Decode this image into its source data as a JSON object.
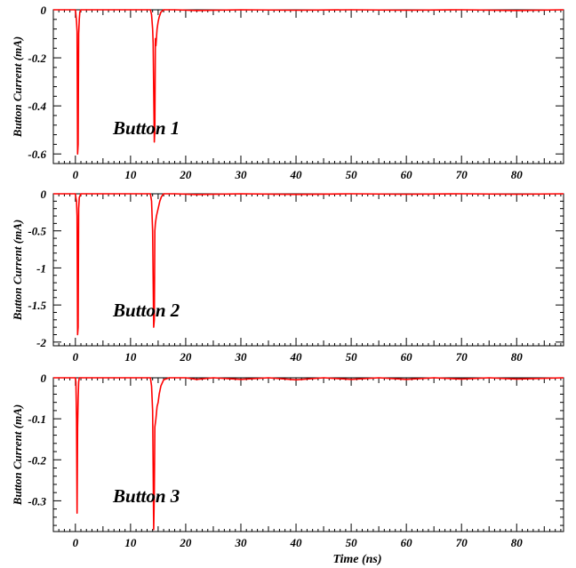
{
  "chart_data": [
    {
      "type": "line",
      "panel_label": "Button 1",
      "ylabel": "Button Current (mA)",
      "xlabel": "",
      "xlim": [
        -4,
        88.5
      ],
      "ylim": [
        -0.64,
        0
      ],
      "xticks": [
        0,
        10,
        20,
        30,
        40,
        50,
        60,
        70,
        80
      ],
      "yticks": [
        0,
        -0.2,
        -0.4,
        -0.6
      ],
      "ytick_labels": [
        "0",
        "-0.2",
        "-0.4",
        "-0.6"
      ],
      "color": "#ff0000",
      "series": [
        {
          "x": [
            -4,
            0.0,
            0.1,
            0.2,
            0.3,
            0.4,
            0.5,
            0.6,
            0.7,
            0.8,
            1.0,
            2,
            4,
            8,
            12,
            13.6,
            13.8,
            14.0,
            14.1,
            14.2,
            14.3,
            14.4,
            14.5,
            14.6,
            14.8,
            15.0,
            15.2,
            15.5,
            16,
            18,
            22,
            30,
            40,
            50,
            60,
            70,
            80,
            88.5
          ],
          "y": [
            0,
            0,
            -0.02,
            -0.05,
            -0.09,
            -0.6,
            -0.56,
            -0.1,
            -0.04,
            -0.01,
            0,
            0,
            0,
            0,
            0,
            0,
            -0.02,
            -0.08,
            -0.14,
            -0.33,
            -0.55,
            -0.5,
            -0.12,
            -0.15,
            -0.08,
            -0.05,
            -0.03,
            -0.01,
            0,
            0,
            -0.003,
            0,
            -0.002,
            0,
            -0.002,
            0,
            -0.003,
            0
          ]
        }
      ]
    },
    {
      "type": "line",
      "panel_label": "Button 2",
      "ylabel": "Button Current (mA)",
      "xlabel": "",
      "xlim": [
        -4,
        88.5
      ],
      "ylim": [
        -2.05,
        0
      ],
      "xticks": [
        0,
        10,
        20,
        30,
        40,
        50,
        60,
        70,
        80
      ],
      "yticks": [
        0,
        -0.5,
        -1,
        -1.5,
        -2
      ],
      "ytick_labels": [
        "0",
        "-0.5",
        "-1",
        "-1.5",
        "-2"
      ],
      "color": "#ff0000",
      "series": [
        {
          "x": [
            -4,
            0.0,
            0.1,
            0.2,
            0.3,
            0.4,
            0.5,
            0.6,
            0.7,
            1.0,
            2,
            6,
            10,
            13.6,
            13.8,
            14.0,
            14.1,
            14.2,
            14.3,
            14.4,
            14.5,
            14.7,
            15.0,
            15.3,
            15.6,
            16,
            18,
            22,
            30,
            40,
            50,
            60,
            70,
            80,
            88.5
          ],
          "y": [
            0,
            0,
            -0.05,
            -0.1,
            -0.3,
            -1.9,
            -1.8,
            -0.2,
            -0.05,
            0,
            0,
            0,
            0,
            0,
            -0.1,
            -0.5,
            -1.15,
            -1.8,
            -1.7,
            -0.5,
            -0.4,
            -0.3,
            -0.2,
            -0.1,
            -0.04,
            0,
            0,
            -0.01,
            0,
            -0.008,
            0,
            -0.006,
            0,
            -0.006,
            0
          ]
        }
      ]
    },
    {
      "type": "line",
      "panel_label": "Button 3",
      "ylabel": "Button Current (mA)",
      "xlabel": "Time (ns)",
      "xlim": [
        -4,
        88.5
      ],
      "ylim": [
        -0.375,
        0
      ],
      "xticks": [
        0,
        10,
        20,
        30,
        40,
        50,
        60,
        70,
        80
      ],
      "yticks": [
        0,
        -0.1,
        -0.2,
        -0.3
      ],
      "ytick_labels": [
        "0",
        "-0.1",
        "-0.2",
        "-0.3"
      ],
      "color": "#ff0000",
      "series": [
        {
          "x": [
            -4,
            0.0,
            0.1,
            0.2,
            0.3,
            0.4,
            0.5,
            0.6,
            0.7,
            1.0,
            2,
            6,
            10,
            13.6,
            13.8,
            14.0,
            14.1,
            14.2,
            14.3,
            14.4,
            14.6,
            14.8,
            15.0,
            15.2,
            15.5,
            16,
            17,
            20,
            22,
            25,
            30,
            35,
            40,
            45,
            50,
            55,
            60,
            65,
            70,
            75,
            80,
            88.5
          ],
          "y": [
            0,
            0,
            -0.01,
            -0.1,
            -0.33,
            -0.12,
            -0.05,
            -0.01,
            0,
            0,
            0,
            0,
            0,
            0,
            -0.02,
            -0.08,
            -0.22,
            -0.37,
            -0.28,
            -0.12,
            -0.1,
            -0.07,
            -0.06,
            -0.04,
            -0.02,
            -0.005,
            0,
            0,
            -0.004,
            0,
            -0.004,
            0,
            -0.005,
            0,
            -0.004,
            0,
            -0.004,
            0,
            -0.003,
            0,
            -0.003,
            0
          ]
        }
      ]
    }
  ]
}
